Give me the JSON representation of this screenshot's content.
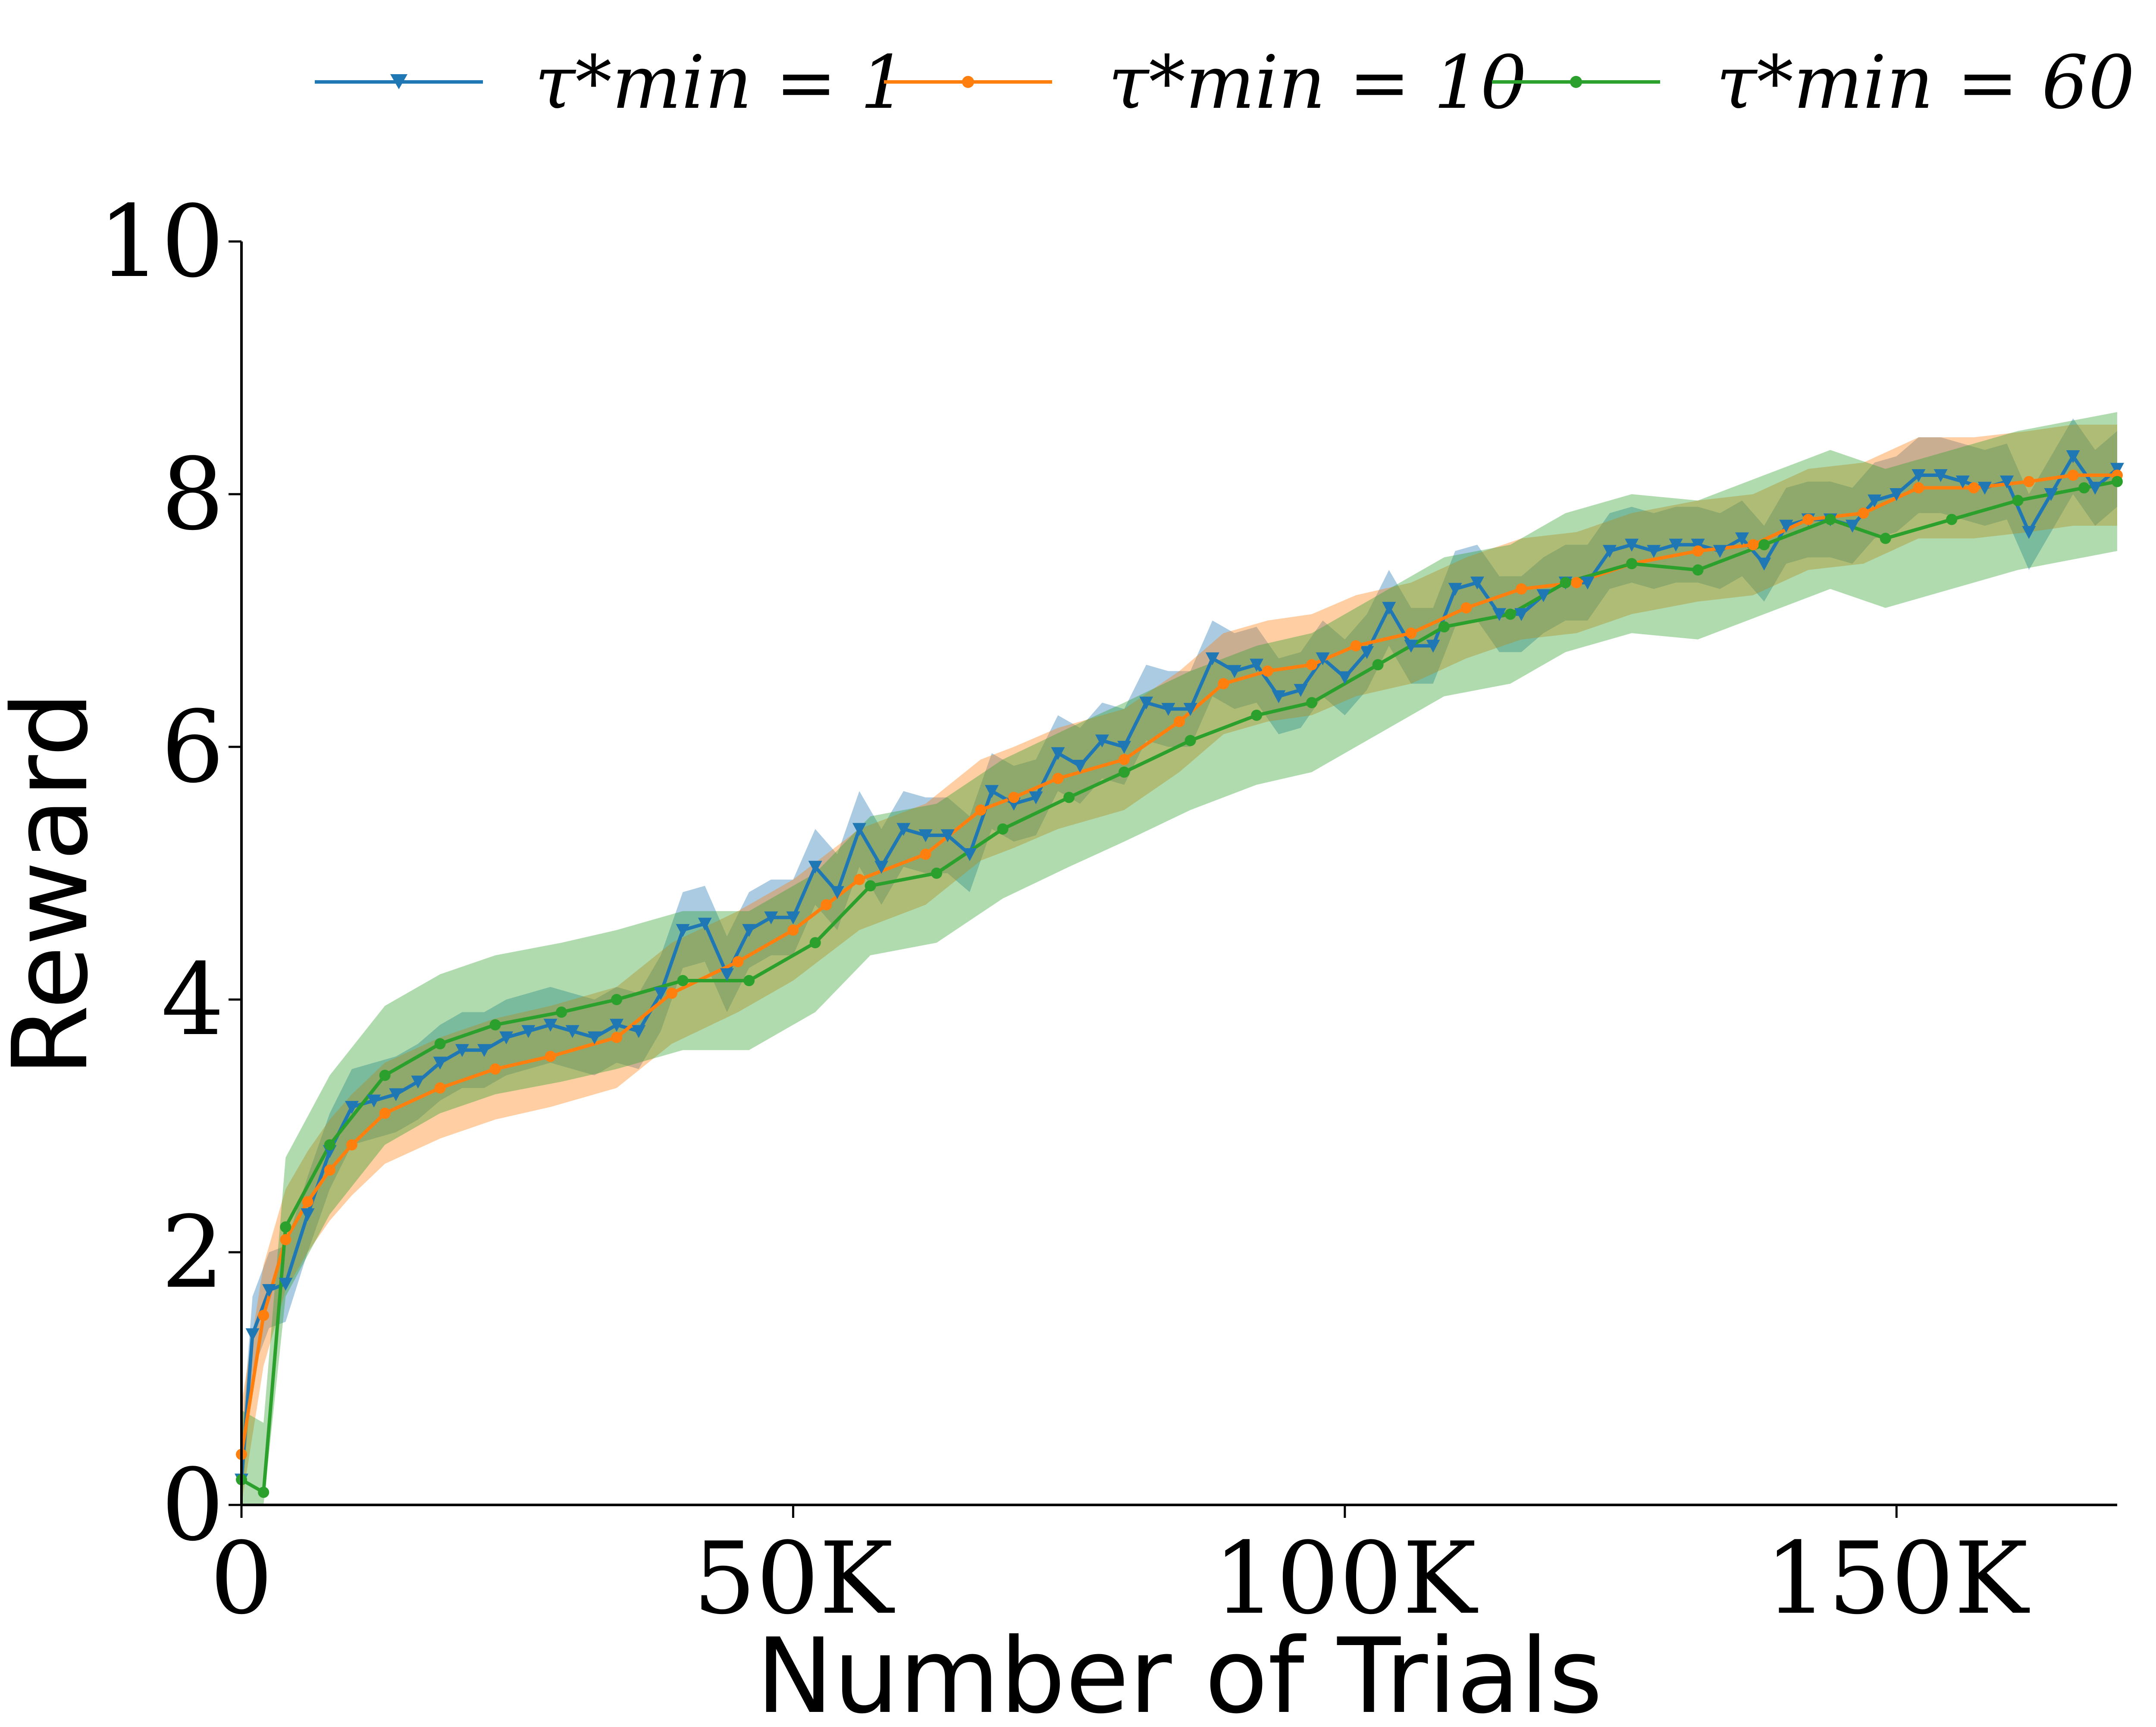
{
  "chart_data": {
    "type": "line",
    "title": "",
    "xlabel": "Number of Trials",
    "ylabel": "Reward",
    "xlim": [
      0,
      170000
    ],
    "ylim": [
      0,
      10
    ],
    "x_ticks": [
      0,
      50000,
      100000,
      150000
    ],
    "x_tick_labels": [
      "0",
      "50K",
      "100K",
      "150K"
    ],
    "y_ticks": [
      0,
      2,
      4,
      6,
      8,
      10
    ],
    "y_tick_labels": [
      "0",
      "2",
      "4",
      "6",
      "8",
      "10"
    ],
    "grid": false,
    "legend_position": "top",
    "colors": {
      "blue": "#1f77b4",
      "orange": "#ff7f0e",
      "green": "#2ca02c"
    },
    "series": [
      {
        "name": "τ*_min = 1",
        "legend_label": "τ*min = 1",
        "color": "#1f77b4",
        "marker": "triangle-down",
        "x": [
          0,
          1000,
          2500,
          4000,
          6000,
          8000,
          10000,
          12000,
          14000,
          16000,
          18000,
          20000,
          22000,
          24000,
          26000,
          28000,
          30000,
          32000,
          34000,
          36000,
          38000,
          40000,
          42000,
          44000,
          46000,
          48000,
          50000,
          52000,
          54000,
          56000,
          58000,
          60000,
          62000,
          64000,
          66000,
          68000,
          70000,
          72000,
          74000,
          76000,
          78000,
          80000,
          82000,
          84000,
          86000,
          88000,
          90000,
          92000,
          94000,
          96000,
          98000,
          100000,
          102000,
          104000,
          106000,
          108000,
          110000,
          112000,
          114000,
          116000,
          118000,
          120000,
          122000,
          124000,
          126000,
          128000,
          130000,
          132000,
          134000,
          136000,
          138000,
          140000,
          142000,
          144000,
          146000,
          148000,
          150000,
          152000,
          154000,
          156000,
          158000,
          160000,
          162000,
          164000,
          166000,
          168000,
          170000
        ],
        "y": [
          0.2,
          1.35,
          1.7,
          1.75,
          2.3,
          2.8,
          3.15,
          3.2,
          3.25,
          3.35,
          3.5,
          3.6,
          3.6,
          3.7,
          3.75,
          3.8,
          3.75,
          3.7,
          3.8,
          3.75,
          4.05,
          4.55,
          4.6,
          4.2,
          4.55,
          4.65,
          4.65,
          5.05,
          4.85,
          5.35,
          5.05,
          5.35,
          5.3,
          5.3,
          5.15,
          5.65,
          5.55,
          5.6,
          5.95,
          5.85,
          6.05,
          6.0,
          6.35,
          6.3,
          6.3,
          6.7,
          6.6,
          6.65,
          6.4,
          6.45,
          6.7,
          6.55,
          6.75,
          7.1,
          6.8,
          6.8,
          7.25,
          7.3,
          7.05,
          7.05,
          7.2,
          7.3,
          7.3,
          7.55,
          7.6,
          7.55,
          7.6,
          7.6,
          7.55,
          7.65,
          7.45,
          7.75,
          7.8,
          7.8,
          7.75,
          7.95,
          8.0,
          8.15,
          8.15,
          8.1,
          8.05,
          8.1,
          7.7,
          8.0,
          8.3,
          8.05,
          8.2
        ],
        "band": 0.3
      },
      {
        "name": "τ*_min = 10",
        "legend_label": "τ*min = 10",
        "color": "#ff7f0e",
        "marker": "dot",
        "x": [
          0,
          2000,
          4000,
          6000,
          8000,
          10000,
          13000,
          18000,
          23000,
          28000,
          34000,
          39000,
          45000,
          50000,
          53000,
          56000,
          62000,
          67000,
          70000,
          74000,
          80000,
          85000,
          89000,
          93000,
          97000,
          101000,
          106000,
          111000,
          116000,
          121000,
          126000,
          132000,
          137000,
          142000,
          147000,
          152000,
          157000,
          162000,
          166000,
          170000
        ],
        "y": [
          0.4,
          1.5,
          2.1,
          2.4,
          2.65,
          2.85,
          3.1,
          3.3,
          3.45,
          3.55,
          3.7,
          4.05,
          4.3,
          4.55,
          4.75,
          4.95,
          5.15,
          5.5,
          5.6,
          5.75,
          5.9,
          6.2,
          6.5,
          6.6,
          6.65,
          6.8,
          6.9,
          7.1,
          7.25,
          7.3,
          7.45,
          7.55,
          7.6,
          7.8,
          7.85,
          8.05,
          8.05,
          8.1,
          8.15,
          8.15
        ],
        "band": 0.4
      },
      {
        "name": "τ*_min = 60",
        "legend_label": "τ*min = 60",
        "color": "#2ca02c",
        "marker": "dot",
        "x": [
          0,
          2000,
          4000,
          8000,
          13000,
          18000,
          23000,
          29000,
          34000,
          40000,
          46000,
          52000,
          57000,
          63000,
          69000,
          75000,
          80000,
          86000,
          92000,
          97000,
          103000,
          109000,
          115000,
          120000,
          126000,
          132000,
          138000,
          144000,
          149000,
          155000,
          161000,
          167000,
          170000
        ],
        "y": [
          0.2,
          0.1,
          2.2,
          2.85,
          3.4,
          3.65,
          3.8,
          3.9,
          4.0,
          4.15,
          4.15,
          4.45,
          4.9,
          5.0,
          5.35,
          5.6,
          5.8,
          6.05,
          6.25,
          6.35,
          6.65,
          6.95,
          7.05,
          7.3,
          7.45,
          7.4,
          7.6,
          7.8,
          7.65,
          7.8,
          7.95,
          8.05,
          8.1
        ],
        "band": 0.55
      }
    ]
  }
}
